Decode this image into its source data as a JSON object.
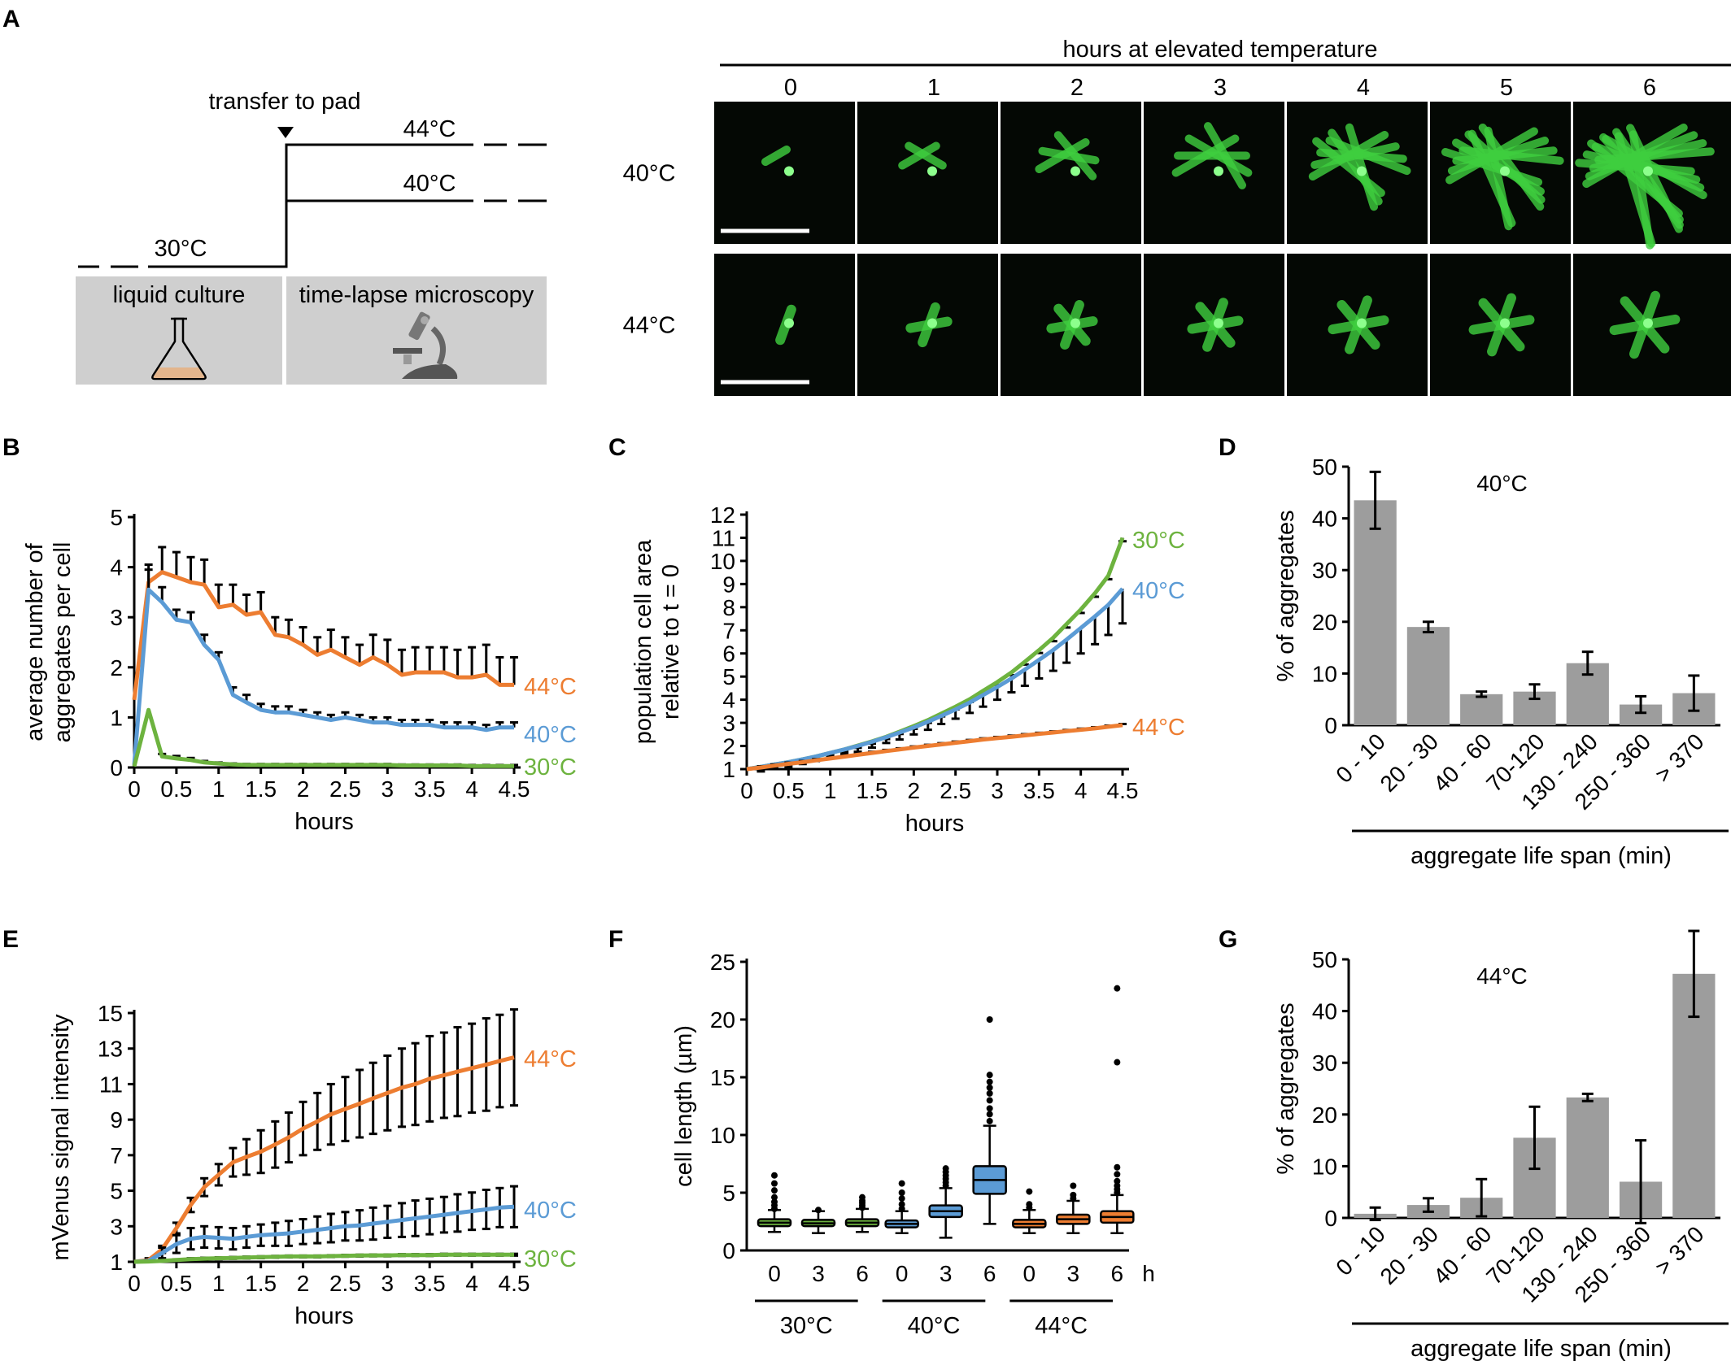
{
  "colors": {
    "c30": "#6db33f",
    "c40": "#5b9bd5",
    "c44": "#ed7d31",
    "bar": "#9d9d9d",
    "panel_bg": "#cfcfcf",
    "microscopy_bg": "#040804",
    "cell": "#3fcf3f"
  },
  "panelA": {
    "letter": "A",
    "schematic": {
      "arrow_label": "transfer to pad",
      "temp_start": "30°C",
      "temp_high1": "44°C",
      "temp_high2": "40°C",
      "box_left": "liquid culture",
      "box_right": "time-lapse microscopy",
      "icons": [
        "flask-icon",
        "microscope-icon"
      ]
    },
    "microscopy": {
      "header": "hours at elevated temperature",
      "columns": [
        "0",
        "1",
        "2",
        "3",
        "4",
        "5",
        "6"
      ],
      "rows": [
        "40°C",
        "44°C"
      ]
    }
  },
  "chart_data": [
    {
      "panel": "B",
      "type": "line",
      "xlabel": "hours",
      "ylabel": [
        "average number of",
        "aggregates per cell"
      ],
      "xlim": [
        0,
        4.5
      ],
      "ylim": [
        0,
        5
      ],
      "xticks": [
        "0",
        "0.5",
        "1",
        "1.5",
        "2",
        "2.5",
        "3",
        "3.5",
        "4",
        "4.5"
      ],
      "yticks": [
        "0",
        "1",
        "2",
        "3",
        "4",
        "5"
      ],
      "x": [
        0,
        0.17,
        0.33,
        0.5,
        0.67,
        0.83,
        1.0,
        1.17,
        1.33,
        1.5,
        1.67,
        1.83,
        2.0,
        2.17,
        2.33,
        2.5,
        2.67,
        2.83,
        3.0,
        3.17,
        3.33,
        3.5,
        3.67,
        3.83,
        4.0,
        4.17,
        4.33,
        4.5
      ],
      "series": [
        {
          "name": "44°C",
          "color": "#ed7d31",
          "values": [
            1.35,
            3.7,
            3.9,
            3.8,
            3.7,
            3.65,
            3.2,
            3.25,
            3.05,
            3.1,
            2.65,
            2.6,
            2.45,
            2.25,
            2.35,
            2.2,
            2.05,
            2.2,
            2.05,
            1.85,
            1.9,
            1.9,
            1.9,
            1.8,
            1.8,
            1.85,
            1.65,
            1.65
          ],
          "errors": [
            0,
            0.25,
            0.5,
            0.5,
            0.5,
            0.5,
            0.45,
            0.4,
            0.4,
            0.4,
            0.35,
            0.35,
            0.35,
            0.35,
            0.4,
            0.4,
            0.4,
            0.45,
            0.5,
            0.5,
            0.5,
            0.5,
            0.5,
            0.55,
            0.6,
            0.6,
            0.55,
            0.55
          ]
        },
        {
          "name": "40°C",
          "color": "#5b9bd5",
          "values": [
            0.05,
            3.55,
            3.3,
            2.95,
            2.9,
            2.45,
            2.15,
            1.45,
            1.3,
            1.15,
            1.1,
            1.1,
            1.05,
            1.0,
            0.95,
            1.0,
            0.95,
            0.9,
            0.9,
            0.85,
            0.85,
            0.85,
            0.8,
            0.8,
            0.8,
            0.75,
            0.8,
            0.8
          ],
          "errors": [
            0,
            0.5,
            0.3,
            0.2,
            0.2,
            0.2,
            0.15,
            0.15,
            0.15,
            0.12,
            0.12,
            0.12,
            0.1,
            0.1,
            0.1,
            0.1,
            0.1,
            0.1,
            0.1,
            0.1,
            0.1,
            0.1,
            0.1,
            0.1,
            0.1,
            0.1,
            0.1,
            0.1
          ]
        },
        {
          "name": "30°C",
          "color": "#6db33f",
          "values": [
            0.02,
            1.15,
            0.22,
            0.18,
            0.15,
            0.1,
            0.08,
            0.06,
            0.05,
            0.05,
            0.05,
            0.05,
            0.05,
            0.05,
            0.05,
            0.05,
            0.05,
            0.05,
            0.05,
            0.04,
            0.04,
            0.04,
            0.04,
            0.04,
            0.03,
            0.03,
            0.03,
            0.03
          ],
          "errors": [
            0,
            0,
            0.05,
            0.05,
            0.04,
            0.03,
            0.02,
            0.02,
            0.02,
            0.02,
            0.02,
            0.02,
            0.02,
            0.02,
            0.02,
            0.02,
            0.02,
            0.02,
            0.02,
            0.02,
            0.02,
            0.02,
            0.02,
            0.02,
            0.02,
            0.02,
            0.02,
            0.02
          ]
        }
      ]
    },
    {
      "panel": "C",
      "type": "line",
      "xlabel": "hours",
      "ylabel": [
        "population cell area",
        "relative to t = 0"
      ],
      "xlim": [
        0,
        4.5
      ],
      "ylim": [
        1,
        12
      ],
      "xticks": [
        "0",
        "0.5",
        "1",
        "1.5",
        "2",
        "2.5",
        "3",
        "3.5",
        "4",
        "4.5"
      ],
      "yticks": [
        "1",
        "2",
        "3",
        "4",
        "5",
        "6",
        "7",
        "8",
        "9",
        "10",
        "11",
        "12"
      ],
      "x": [
        0,
        0.17,
        0.33,
        0.5,
        0.67,
        0.83,
        1.0,
        1.17,
        1.33,
        1.5,
        1.67,
        1.83,
        2.0,
        2.17,
        2.33,
        2.5,
        2.67,
        2.83,
        3.0,
        3.17,
        3.33,
        3.5,
        3.67,
        3.83,
        4.0,
        4.17,
        4.33,
        4.5
      ],
      "series": [
        {
          "name": "30°C",
          "color": "#6db33f",
          "values": [
            1.0,
            1.1,
            1.2,
            1.3,
            1.42,
            1.55,
            1.7,
            1.85,
            2.02,
            2.2,
            2.4,
            2.62,
            2.86,
            3.12,
            3.4,
            3.7,
            4.02,
            4.38,
            4.76,
            5.18,
            5.64,
            6.14,
            6.68,
            7.27,
            7.9,
            8.6,
            9.36,
            11.0
          ],
          "errors": [
            0,
            0.1,
            0.1,
            0.1,
            0.1,
            0.1,
            0.1,
            0.1,
            0.1,
            0.1,
            0.1,
            0.1,
            0.12,
            0.12,
            0.12,
            0.12,
            0.12,
            0.12,
            0.12,
            0.12,
            0.12,
            0.12,
            0.15,
            0.15,
            0.15,
            0.15,
            0.15,
            0.15
          ]
        },
        {
          "name": "40°C",
          "color": "#5b9bd5",
          "values": [
            1.0,
            1.1,
            1.2,
            1.3,
            1.42,
            1.55,
            1.7,
            1.85,
            2.0,
            2.18,
            2.38,
            2.58,
            2.8,
            3.05,
            3.3,
            3.58,
            3.88,
            4.2,
            4.55,
            4.92,
            5.3,
            5.72,
            6.15,
            6.6,
            7.1,
            7.6,
            8.1,
            8.8
          ],
          "errors": [
            0,
            0.2,
            0.2,
            0.2,
            0.2,
            0.2,
            0.2,
            0.2,
            0.25,
            0.25,
            0.25,
            0.3,
            0.3,
            0.35,
            0.35,
            0.4,
            0.45,
            0.5,
            0.55,
            0.6,
            0.7,
            0.8,
            0.9,
            1.0,
            1.1,
            1.2,
            1.3,
            1.5
          ]
        },
        {
          "name": "44°C",
          "color": "#ed7d31",
          "values": [
            1.0,
            1.07,
            1.15,
            1.23,
            1.3,
            1.38,
            1.46,
            1.54,
            1.62,
            1.7,
            1.78,
            1.85,
            1.93,
            2.0,
            2.07,
            2.14,
            2.21,
            2.28,
            2.34,
            2.4,
            2.46,
            2.52,
            2.58,
            2.64,
            2.7,
            2.76,
            2.83,
            2.9
          ],
          "errors": [
            0,
            0.05,
            0.05,
            0.05,
            0.05,
            0.05,
            0.05,
            0.05,
            0.05,
            0.05,
            0.05,
            0.05,
            0.05,
            0.05,
            0.05,
            0.05,
            0.05,
            0.05,
            0.05,
            0.05,
            0.05,
            0.05,
            0.05,
            0.05,
            0.05,
            0.05,
            0.05,
            0.05
          ]
        }
      ]
    },
    {
      "panel": "D",
      "type": "bar",
      "title": "40°C",
      "xlabel": "aggregate life span (min)",
      "ylabel": "% of aggregates",
      "ylim": [
        0,
        50
      ],
      "yticks": [
        "0",
        "10",
        "20",
        "30",
        "40",
        "50"
      ],
      "categories": [
        "0 - 10",
        "20 - 30",
        "40 - 60",
        "70-120",
        "130 - 240",
        "250 - 360",
        "> 370"
      ],
      "values": [
        43.5,
        19,
        6,
        6.5,
        12,
        4,
        6.2
      ],
      "errors": [
        5.5,
        1,
        0.5,
        1.4,
        2.2,
        1.6,
        3.4
      ]
    },
    {
      "panel": "E",
      "type": "line",
      "xlabel": "hours",
      "ylabel": "mVenus signal intensity",
      "xlim": [
        0,
        4.5
      ],
      "ylim": [
        1,
        15
      ],
      "xticks": [
        "0",
        "0.5",
        "1",
        "1.5",
        "2",
        "2.5",
        "3",
        "3.5",
        "4",
        "4.5"
      ],
      "yticks": [
        "1",
        "3",
        "5",
        "7",
        "9",
        "11",
        "13",
        "15"
      ],
      "x": [
        0,
        0.17,
        0.33,
        0.5,
        0.67,
        0.83,
        1.0,
        1.17,
        1.33,
        1.5,
        1.67,
        1.83,
        2.0,
        2.17,
        2.33,
        2.5,
        2.67,
        2.83,
        3.0,
        3.17,
        3.33,
        3.5,
        3.67,
        3.83,
        4.0,
        4.17,
        4.33,
        4.5
      ],
      "series": [
        {
          "name": "44°C",
          "color": "#ed7d31",
          "values": [
            1.0,
            1.1,
            1.7,
            2.9,
            4.2,
            5.2,
            5.9,
            6.6,
            6.9,
            7.2,
            7.6,
            8.0,
            8.5,
            8.9,
            9.3,
            9.6,
            9.9,
            10.2,
            10.5,
            10.8,
            11.0,
            11.3,
            11.5,
            11.7,
            11.9,
            12.1,
            12.3,
            12.5
          ],
          "errors": [
            0,
            0.1,
            0.2,
            0.3,
            0.4,
            0.5,
            0.6,
            0.8,
            1.0,
            1.2,
            1.3,
            1.4,
            1.5,
            1.6,
            1.7,
            1.8,
            1.9,
            2.0,
            2.1,
            2.2,
            2.3,
            2.4,
            2.4,
            2.5,
            2.5,
            2.6,
            2.6,
            2.7
          ]
        },
        {
          "name": "40°C",
          "color": "#5b9bd5",
          "values": [
            1.0,
            1.05,
            1.5,
            2.0,
            2.3,
            2.4,
            2.35,
            2.3,
            2.4,
            2.5,
            2.55,
            2.6,
            2.7,
            2.8,
            2.9,
            3.0,
            3.05,
            3.15,
            3.25,
            3.35,
            3.45,
            3.55,
            3.65,
            3.75,
            3.85,
            3.95,
            4.05,
            4.1
          ],
          "errors": [
            0,
            0.05,
            0.3,
            0.5,
            0.6,
            0.6,
            0.6,
            0.6,
            0.6,
            0.6,
            0.65,
            0.7,
            0.7,
            0.75,
            0.8,
            0.8,
            0.85,
            0.9,
            0.9,
            0.95,
            1.0,
            1.0,
            1.0,
            1.05,
            1.05,
            1.1,
            1.1,
            1.15
          ]
        },
        {
          "name": "30°C",
          "color": "#6db33f",
          "values": [
            1.0,
            1.02,
            1.05,
            1.1,
            1.15,
            1.18,
            1.2,
            1.22,
            1.24,
            1.26,
            1.28,
            1.3,
            1.3,
            1.3,
            1.32,
            1.34,
            1.35,
            1.36,
            1.36,
            1.38,
            1.38,
            1.38,
            1.4,
            1.4,
            1.4,
            1.4,
            1.4,
            1.4
          ],
          "errors": [
            0,
            0.02,
            0.03,
            0.04,
            0.05,
            0.05,
            0.05,
            0.05,
            0.05,
            0.05,
            0.05,
            0.05,
            0.05,
            0.05,
            0.05,
            0.05,
            0.05,
            0.05,
            0.05,
            0.05,
            0.05,
            0.05,
            0.05,
            0.05,
            0.05,
            0.05,
            0.05,
            0.05
          ]
        }
      ]
    },
    {
      "panel": "F",
      "type": "box",
      "ylabel": "cell length (µm)",
      "ylim": [
        0,
        25
      ],
      "yticks": [
        "0",
        "5",
        "10",
        "15",
        "20",
        "25"
      ],
      "unit": "h",
      "groups": [
        {
          "label": "30°C",
          "color": "#6db33f",
          "boxes": [
            {
              "x": "0",
              "whisker_low": 1.6,
              "q1": 2.1,
              "median": 2.4,
              "q3": 2.7,
              "whisker_high": 3.5,
              "outliers": [
                3.6,
                3.9,
                4.2,
                4.6,
                5.2,
                5.8,
                6.5
              ]
            },
            {
              "x": "3",
              "whisker_low": 1.5,
              "q1": 2.1,
              "median": 2.35,
              "q3": 2.65,
              "whisker_high": 3.4,
              "outliers": [
                3.5
              ]
            },
            {
              "x": "6",
              "whisker_low": 1.6,
              "q1": 2.1,
              "median": 2.4,
              "q3": 2.7,
              "whisker_high": 3.6,
              "outliers": [
                3.7,
                3.9,
                4.1,
                4.3,
                4.6
              ]
            }
          ]
        },
        {
          "label": "40°C",
          "color": "#5b9bd5",
          "boxes": [
            {
              "x": "0",
              "whisker_low": 1.5,
              "q1": 2.0,
              "median": 2.3,
              "q3": 2.6,
              "whisker_high": 3.4,
              "outliers": [
                3.6,
                4.0,
                4.5,
                5.0,
                5.8
              ]
            },
            {
              "x": "3",
              "whisker_low": 1.1,
              "q1": 2.9,
              "median": 3.4,
              "q3": 3.9,
              "whisker_high": 5.4,
              "outliers": [
                5.6,
                5.9,
                6.2,
                6.5,
                6.8,
                7.1
              ]
            },
            {
              "x": "6",
              "whisker_low": 2.3,
              "q1": 4.9,
              "median": 6.1,
              "q3": 7.3,
              "whisker_high": 10.8,
              "outliers": [
                11.2,
                11.8,
                12.3,
                13.0,
                13.6,
                14.1,
                14.6,
                15.2,
                20.0
              ]
            }
          ]
        },
        {
          "label": "44°C",
          "color": "#ed7d31",
          "boxes": [
            {
              "x": "0",
              "whisker_low": 1.5,
              "q1": 2.0,
              "median": 2.3,
              "q3": 2.65,
              "whisker_high": 3.5,
              "outliers": [
                3.7,
                4.0,
                5.1
              ]
            },
            {
              "x": "3",
              "whisker_low": 1.5,
              "q1": 2.3,
              "median": 2.7,
              "q3": 3.1,
              "whisker_high": 4.3,
              "outliers": [
                4.5,
                4.8,
                5.6
              ]
            },
            {
              "x": "6",
              "whisker_low": 1.5,
              "q1": 2.4,
              "median": 2.9,
              "q3": 3.4,
              "whisker_high": 4.8,
              "outliers": [
                5.0,
                5.3,
                5.6,
                6.0,
                6.6,
                7.2,
                16.3,
                22.7
              ]
            }
          ]
        }
      ]
    },
    {
      "panel": "G",
      "type": "bar",
      "title": "44°C",
      "xlabel": "aggregate life span (min)",
      "ylabel": "% of aggregates",
      "ylim": [
        0,
        50
      ],
      "yticks": [
        "0",
        "10",
        "20",
        "30",
        "40",
        "50"
      ],
      "categories": [
        "0 - 10",
        "20 - 30",
        "40 - 60",
        "70-120",
        "130 - 240",
        "250 - 360",
        "> 370"
      ],
      "values": [
        0.8,
        2.5,
        3.9,
        15.5,
        23.3,
        7.0,
        47.2
      ],
      "errors": [
        1.2,
        1.3,
        3.6,
        6.0,
        0.7,
        8.0,
        8.3
      ]
    }
  ]
}
